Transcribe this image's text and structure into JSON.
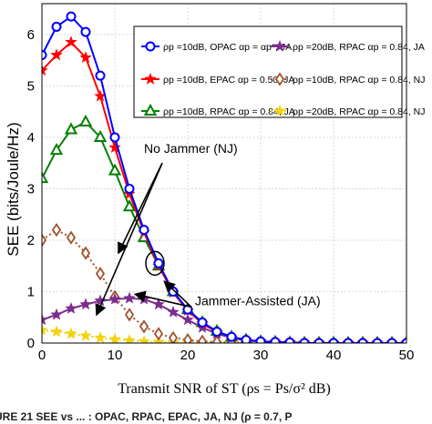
{
  "chart_data": {
    "type": "line",
    "xlabel": "Transmit SNR of ST (ρs = Ps/σ² dB)",
    "ylabel": "SEE (bits/Joule/Hz)",
    "xlim": [
      0,
      50
    ],
    "ylim": [
      0,
      6.6
    ],
    "xticks": [
      0,
      10,
      20,
      30,
      40,
      50
    ],
    "yticks": [
      0,
      1,
      2,
      3,
      4,
      5,
      6
    ],
    "grid": true,
    "legend_position": "top-right",
    "x": [
      0,
      2,
      4,
      6,
      8,
      10,
      12,
      14,
      16,
      18,
      20,
      22,
      24,
      26,
      28,
      30,
      32,
      34,
      36,
      38,
      40,
      42,
      44,
      46,
      48,
      50
    ],
    "series": [
      {
        "name": "ρp =10dB, OPAC αp = αp*, JA",
        "color": "#0000ff",
        "marker": "circle",
        "dash": "solid",
        "values": [
          5.6,
          6.15,
          6.35,
          6.05,
          5.2,
          4.0,
          3.0,
          2.2,
          1.55,
          1.0,
          0.65,
          0.4,
          0.22,
          0.12,
          0.06,
          0.03,
          0.02,
          0.01,
          0.0,
          0.0,
          0.0,
          0.0,
          0.0,
          0.0,
          0.0,
          0.0
        ]
      },
      {
        "name": "ρp =10dB, EPAC αp = 0.50, JA",
        "color": "#ff0000",
        "marker": "star",
        "dash": "solid",
        "values": [
          5.3,
          5.6,
          5.85,
          5.55,
          4.8,
          3.8,
          2.9,
          2.15,
          1.5,
          0.98,
          0.63,
          0.38,
          0.21,
          0.11,
          0.06,
          0.03,
          0.02,
          0.01,
          0.0,
          0.0,
          0.0,
          0.0,
          0.0,
          0.0,
          0.0,
          0.0
        ]
      },
      {
        "name": "ρp =10dB, RPAC αp = 0.84, JA",
        "color": "#008000",
        "marker": "triangle",
        "dash": "solid",
        "values": [
          3.2,
          3.75,
          4.15,
          4.3,
          4.0,
          3.35,
          2.65,
          2.05,
          1.5,
          1.0,
          0.65,
          0.4,
          0.23,
          0.12,
          0.06,
          0.03,
          0.02,
          0.01,
          0.0,
          0.0,
          0.0,
          0.0,
          0.0,
          0.0,
          0.0,
          0.0
        ]
      },
      {
        "name": "ρp =20dB, RPAC αp = 0.84, JA",
        "color": "#7b2d8e",
        "marker": "star",
        "dash": "solid",
        "values": [
          0.45,
          0.55,
          0.67,
          0.75,
          0.82,
          0.85,
          0.87,
          0.85,
          0.75,
          0.6,
          0.45,
          0.3,
          0.18,
          0.1,
          0.05,
          0.03,
          0.02,
          0.01,
          0.0,
          0.0,
          0.0,
          0.0,
          0.0,
          0.0,
          0.0,
          0.0
        ]
      },
      {
        "name": "ρp =10dB, RPAC αp = 0.84, NJ",
        "color": "#a0522d",
        "marker": "diamond",
        "dash": "dotted",
        "values": [
          2.0,
          2.2,
          2.05,
          1.75,
          1.35,
          0.9,
          0.55,
          0.32,
          0.18,
          0.1,
          0.06,
          0.03,
          0.02,
          0.01,
          0.0,
          0.0,
          0.0,
          0.0,
          0.0,
          0.0,
          0.0,
          0.0,
          0.0,
          0.0,
          0.0,
          0.0
        ]
      },
      {
        "name": "ρp =20dB, RPAC αp = 0.84, NJ",
        "color": "#f2d40c",
        "marker": "star",
        "dash": "dotted",
        "values": [
          0.25,
          0.22,
          0.18,
          0.14,
          0.1,
          0.07,
          0.05,
          0.03,
          0.02,
          0.01,
          0.0,
          0.0,
          0.0,
          0.0,
          0.0,
          0.0,
          0.0,
          0.0,
          0.0,
          0.0,
          0.0,
          0.0,
          0.0,
          0.0,
          0.0,
          0.0
        ]
      }
    ],
    "annotations": [
      {
        "text": "No Jammer (NJ)",
        "x": 14,
        "y": 3.7
      },
      {
        "text": "Jammer-Assisted (JA)",
        "x": 20,
        "y": 0.45
      }
    ],
    "caption": "URE 21   SEE vs ... : OPAC, RPAC, EPAC, JA, NJ (ρ = 0.7, P"
  }
}
